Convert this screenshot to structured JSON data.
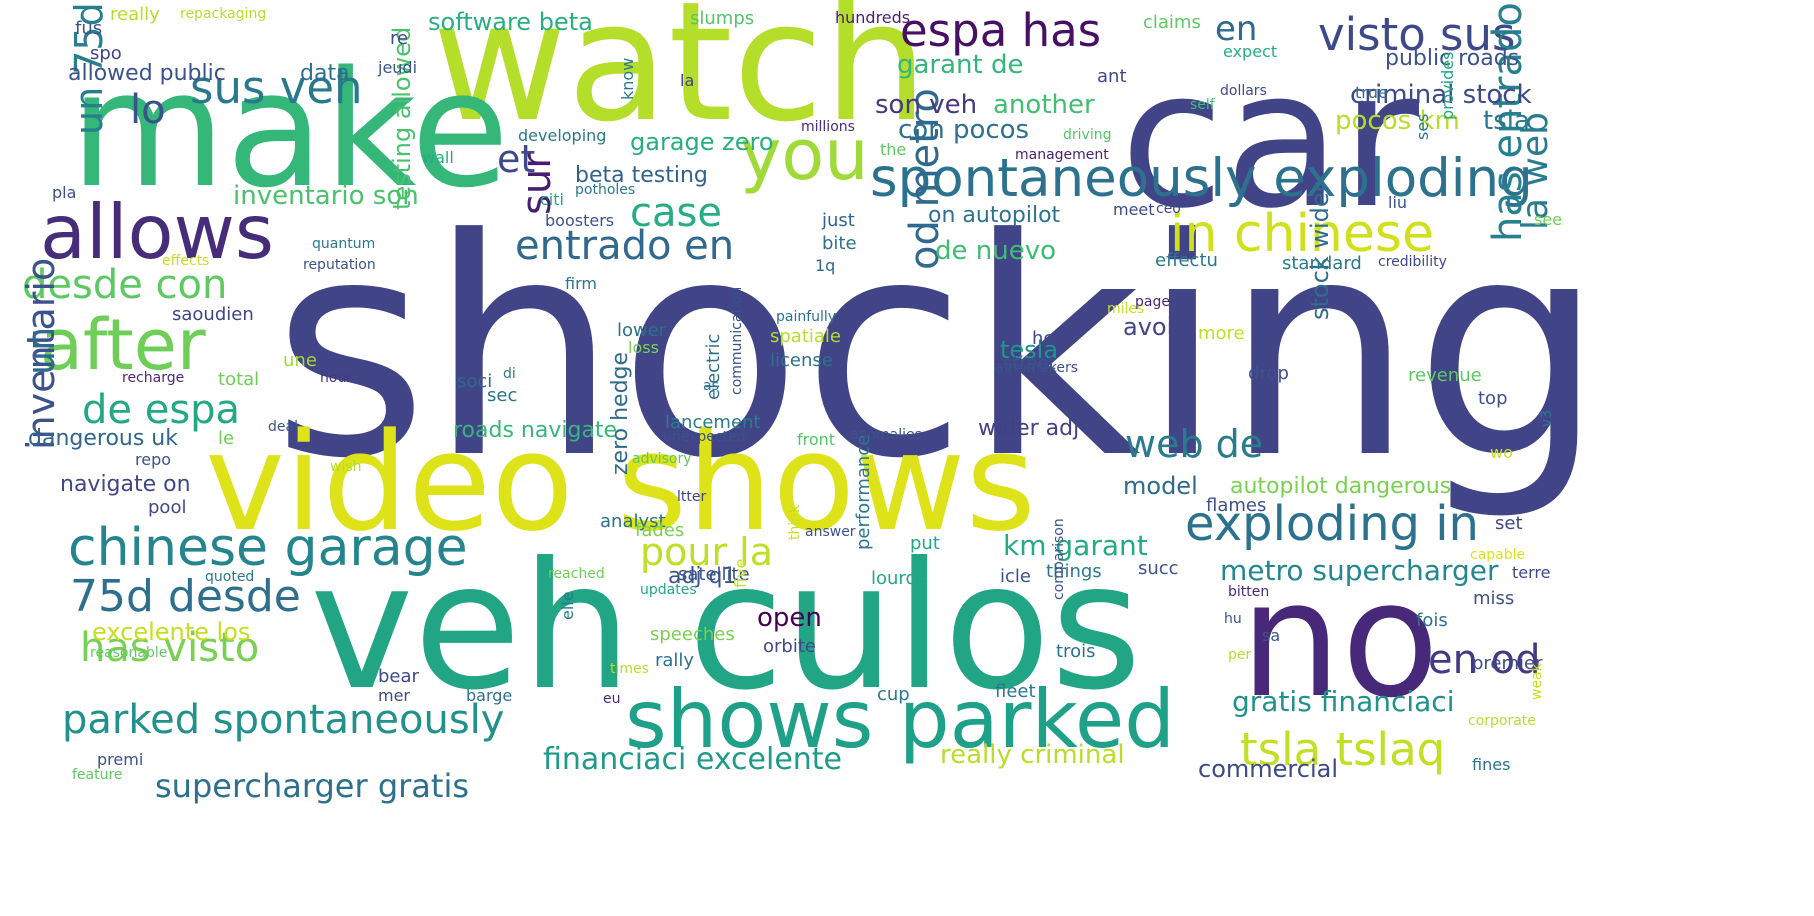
{
  "words": [
    {
      "t": "shocking",
      "c": "#414487"
    },
    {
      "t": "watch",
      "c": "#b5de2b"
    },
    {
      "t": "make",
      "c": "#35b779"
    },
    {
      "t": "car",
      "c": "#414487"
    },
    {
      "t": "video shows",
      "c": "#dde318"
    },
    {
      "t": "veh culos",
      "c": "#21a585"
    },
    {
      "t": "no",
      "c": "#482878"
    },
    {
      "t": "allows",
      "c": "#472c7a"
    },
    {
      "t": "after",
      "c": "#6ece58"
    },
    {
      "t": "you",
      "c": "#a0da39"
    },
    {
      "t": "shows parked",
      "c": "#1fa088"
    },
    {
      "t": "spontaneously exploding",
      "c": "#2c728e"
    },
    {
      "t": "visto sus",
      "c": "#3e4989"
    },
    {
      "t": "espa has",
      "c": "#471063"
    },
    {
      "t": "sus veh",
      "c": "#2a788e"
    },
    {
      "t": "in chinese",
      "c": "#d0e11c"
    },
    {
      "t": "entrado en",
      "c": "#31688e"
    },
    {
      "t": "chinese garage",
      "c": "#25858e"
    },
    {
      "t": "exploding in",
      "c": "#2c728e"
    },
    {
      "t": "parked spontaneously",
      "c": "#21918c"
    },
    {
      "t": "desde con",
      "c": "#5ec962"
    },
    {
      "t": "de espa",
      "c": "#22a884"
    },
    {
      "t": "75d desde",
      "c": "#2e6f8e"
    },
    {
      "t": "has visto",
      "c": "#7ad151"
    },
    {
      "t": "tsla tslaq",
      "c": "#c2df23"
    },
    {
      "t": "web de",
      "c": "#297b8e"
    },
    {
      "t": "pour la",
      "c": "#bddf26"
    },
    {
      "t": "case",
      "c": "#26ad81"
    },
    {
      "t": "en od",
      "c": "#443983"
    },
    {
      "t": "la web",
      "c": "#287c8e"
    },
    {
      "t": "has entrado",
      "c": "#27808e"
    },
    {
      "t": "od metro",
      "c": "#31688e"
    },
    {
      "t": "un 75d",
      "c": "#277f8e"
    },
    {
      "t": "inventario",
      "c": "#3b528b"
    },
    {
      "t": "un",
      "c": "#31688e"
    },
    {
      "t": "sur",
      "c": "#481f70"
    },
    {
      "t": "et",
      "c": "#3e4a89"
    },
    {
      "t": "lo",
      "c": "#3b528b"
    },
    {
      "t": "en",
      "c": "#306a8e"
    },
    {
      "t": "supercharger gratis",
      "c": "#2d708e"
    },
    {
      "t": "financiaci excelente",
      "c": "#1f9a8a"
    },
    {
      "t": "metro supercharger",
      "c": "#24868e"
    },
    {
      "t": "gratis financiaci",
      "c": "#21918c"
    },
    {
      "t": "km garant",
      "c": "#25ab82"
    },
    {
      "t": "garant de",
      "c": "#34b679"
    },
    {
      "t": "son veh",
      "c": "#453781"
    },
    {
      "t": "another",
      "c": "#42be71"
    },
    {
      "t": "con pocos",
      "c": "#2d718e"
    },
    {
      "t": "pocos km",
      "c": "#b5de2b"
    },
    {
      "t": "tsla",
      "c": "#2a788e"
    },
    {
      "t": "criminal stock",
      "c": "#3e4989"
    },
    {
      "t": "public roads",
      "c": "#3b528b"
    },
    {
      "t": "software beta",
      "c": "#29af7f"
    },
    {
      "t": "garage zero",
      "c": "#28ae80"
    },
    {
      "t": "beta testing",
      "c": "#33638d"
    },
    {
      "t": "inventario son",
      "c": "#4ac16d"
    },
    {
      "t": "testing allowed",
      "c": "#4ac16d"
    },
    {
      "t": "allowed public",
      "c": "#3b528b"
    },
    {
      "t": "data",
      "c": "#2d708e"
    },
    {
      "t": "de nuevo",
      "c": "#3fbc73"
    },
    {
      "t": "on autopilot",
      "c": "#2c728e"
    },
    {
      "t": "tesla",
      "c": "#1f968b"
    },
    {
      "t": "avoid",
      "c": "#414487"
    },
    {
      "t": "stock wider",
      "c": "#2f6c8e"
    },
    {
      "t": "wider adj",
      "c": "#424086"
    },
    {
      "t": "roads navigate",
      "c": "#35b779"
    },
    {
      "t": "lancement",
      "c": "#287d8e"
    },
    {
      "t": "dangerous uk",
      "c": "#32658e"
    },
    {
      "t": "navigate on",
      "c": "#3f4788"
    },
    {
      "t": "model",
      "c": "#306a8e"
    },
    {
      "t": "autopilot dangerous",
      "c": "#7ad151"
    },
    {
      "t": "excelente los",
      "c": "#c5e021"
    },
    {
      "t": "zero hedge",
      "c": "#2f6b8e"
    },
    {
      "t": "adj q1",
      "c": "#3b528b"
    },
    {
      "t": "open",
      "c": "#440154"
    },
    {
      "t": "really criminal",
      "c": "#b8de29"
    },
    {
      "t": "commercial",
      "c": "#3e4989"
    },
    {
      "t": "slumps",
      "c": "#54c568"
    },
    {
      "t": "claims",
      "c": "#5ec962"
    },
    {
      "t": "expect",
      "c": "#27ad81"
    },
    {
      "t": "hundreds",
      "c": "#481f70"
    },
    {
      "t": "really",
      "c": "#b5de2b"
    },
    {
      "t": "repackaging",
      "c": "#b5de2b"
    },
    {
      "t": "fus",
      "c": "#3b528b"
    },
    {
      "t": "spo",
      "c": "#414487"
    },
    {
      "t": "re",
      "c": "#3e4989"
    },
    {
      "t": "jeudi",
      "c": "#3b528b"
    },
    {
      "t": "know",
      "c": "#2a788e"
    },
    {
      "t": "la",
      "c": "#424086"
    },
    {
      "t": "ant",
      "c": "#3e4989"
    },
    {
      "t": "dollars",
      "c": "#3e4989"
    },
    {
      "t": "true",
      "c": "#2f6c8e"
    },
    {
      "t": "self",
      "c": "#42be71"
    },
    {
      "t": "provides",
      "c": "#22a884"
    },
    {
      "t": "ses",
      "c": "#2a788e"
    },
    {
      "t": "liu",
      "c": "#3b528b"
    },
    {
      "t": "developing",
      "c": "#2a788e"
    },
    {
      "t": "millions",
      "c": "#472c7a"
    },
    {
      "t": "the",
      "c": "#5ec962"
    },
    {
      "t": "management",
      "c": "#481f70"
    },
    {
      "t": "driving",
      "c": "#52c569"
    },
    {
      "t": "wall",
      "c": "#25ab82"
    },
    {
      "t": "pla",
      "c": "#3b528b"
    },
    {
      "t": "citi",
      "c": "#22a884"
    },
    {
      "t": "potholes",
      "c": "#2a788e"
    },
    {
      "t": "boosters",
      "c": "#3b528b"
    },
    {
      "t": "just",
      "c": "#32658e"
    },
    {
      "t": "meet",
      "c": "#3e4989"
    },
    {
      "t": "ceo",
      "c": "#3e4989"
    },
    {
      "t": "see",
      "c": "#6ece58"
    },
    {
      "t": "quantum",
      "c": "#2a788e"
    },
    {
      "t": "effects",
      "c": "#c5e021"
    },
    {
      "t": "reputation",
      "c": "#3b528b"
    },
    {
      "t": "bite",
      "c": "#2d718e"
    },
    {
      "t": "1q",
      "c": "#31688e"
    },
    {
      "t": "effectu",
      "c": "#2a788e"
    },
    {
      "t": "standard",
      "c": "#2a788e"
    },
    {
      "t": "credibility",
      "c": "#3e4989"
    },
    {
      "t": "firm",
      "c": "#2a788e"
    },
    {
      "t": "saoudien",
      "c": "#414487"
    },
    {
      "t": "painfully",
      "c": "#2c728e"
    },
    {
      "t": "spatiale",
      "c": "#b5de2b"
    },
    {
      "t": "electric",
      "c": "#2d708e"
    },
    {
      "t": "communication",
      "c": "#3b528b"
    },
    {
      "t": "lower",
      "c": "#2d708e"
    },
    {
      "t": "loss",
      "c": "#7ad151"
    },
    {
      "t": "license",
      "c": "#2c728e"
    },
    {
      "t": "miles",
      "c": "#c5e021"
    },
    {
      "t": "page",
      "c": "#482878"
    },
    {
      "t": "he",
      "c": "#3e4989"
    },
    {
      "t": "street",
      "c": "#3b528b"
    },
    {
      "t": "more",
      "c": "#c2df23"
    },
    {
      "t": "automakers",
      "c": "#3b528b"
    },
    {
      "t": "drop",
      "c": "#3b528b"
    },
    {
      "t": "revenue",
      "c": "#5ec962"
    },
    {
      "t": "une",
      "c": "#a0da39"
    },
    {
      "t": "recharge",
      "c": "#482878"
    },
    {
      "t": "total",
      "c": "#6ece58"
    },
    {
      "t": "hour",
      "c": "#443983"
    },
    {
      "t": "soci",
      "c": "#31688e"
    },
    {
      "t": "di",
      "c": "#2a788e"
    },
    {
      "t": "sec",
      "c": "#2c728e"
    },
    {
      "t": "as",
      "c": "#2a788e"
    },
    {
      "t": "deal",
      "c": "#3b528b"
    },
    {
      "t": "le",
      "c": "#6ece58"
    },
    {
      "t": "repo",
      "c": "#3b528b"
    },
    {
      "t": "advisory",
      "c": "#5ec962"
    },
    {
      "t": "unexpected",
      "c": "#3b528b"
    },
    {
      "t": "front",
      "c": "#54c568"
    },
    {
      "t": "anomalies",
      "c": "#3b528b"
    },
    {
      "t": "wo",
      "c": "#c5e021"
    },
    {
      "t": "top",
      "c": "#3b528b"
    },
    {
      "t": "v3",
      "c": "#2a788e"
    },
    {
      "t": "wish",
      "c": "#b5de2b"
    },
    {
      "t": "pool",
      "c": "#3e4989"
    },
    {
      "t": "ltter",
      "c": "#414487"
    },
    {
      "t": "flames",
      "c": "#3b528b"
    },
    {
      "t": "set",
      "c": "#3e4989"
    },
    {
      "t": "analyst",
      "c": "#2c728e"
    },
    {
      "t": "fades",
      "c": "#7ad151"
    },
    {
      "t": "answer",
      "c": "#3b528b"
    },
    {
      "t": "think",
      "c": "#c5e021"
    },
    {
      "t": "put",
      "c": "#22a884"
    },
    {
      "t": "performance",
      "c": "#2a788e"
    },
    {
      "t": "capable",
      "c": "#dde318"
    },
    {
      "t": "quoted",
      "c": "#2a788e"
    },
    {
      "t": "reached",
      "c": "#6ece58"
    },
    {
      "t": "updates",
      "c": "#22a884"
    },
    {
      "t": "satellite",
      "c": "#3b528b"
    },
    {
      "t": "lourde",
      "c": "#22a884"
    },
    {
      "t": "icle",
      "c": "#3b528b"
    },
    {
      "t": "things",
      "c": "#2a788e"
    },
    {
      "t": "succ",
      "c": "#3b528b"
    },
    {
      "t": "bitten",
      "c": "#482878"
    },
    {
      "t": "miss",
      "c": "#3b528b"
    },
    {
      "t": "terre",
      "c": "#3e4989"
    },
    {
      "t": "fois",
      "c": "#2c728e"
    },
    {
      "t": "speeches",
      "c": "#7ad151"
    },
    {
      "t": "five",
      "c": "#c5e021"
    },
    {
      "t": "trois",
      "c": "#2c728e"
    },
    {
      "t": "comparison",
      "c": "#3b528b"
    },
    {
      "t": "hu",
      "c": "#3b528b"
    },
    {
      "t": "sa",
      "c": "#3b528b"
    },
    {
      "t": "premier",
      "c": "#3e4989"
    },
    {
      "t": "reasonable",
      "c": "#5ec962"
    },
    {
      "t": "elle",
      "c": "#2a788e"
    },
    {
      "t": "orbite",
      "c": "#3e4989"
    },
    {
      "t": "rally",
      "c": "#2c728e"
    },
    {
      "t": "times",
      "c": "#b5de2b"
    },
    {
      "t": "per",
      "c": "#b5de2b"
    },
    {
      "t": "bear",
      "c": "#3e4989"
    },
    {
      "t": "mer",
      "c": "#3e4989"
    },
    {
      "t": "barge",
      "c": "#2c728e"
    },
    {
      "t": "eu",
      "c": "#482878"
    },
    {
      "t": "cup",
      "c": "#2a788e"
    },
    {
      "t": "fleet",
      "c": "#2a788e"
    },
    {
      "t": "corporate",
      "c": "#b5de2b"
    },
    {
      "t": "weak",
      "c": "#c5e021"
    },
    {
      "t": "premi",
      "c": "#3b528b"
    },
    {
      "t": "feature",
      "c": "#5ec962"
    },
    {
      "t": "fines",
      "c": "#2c728e"
    }
  ]
}
